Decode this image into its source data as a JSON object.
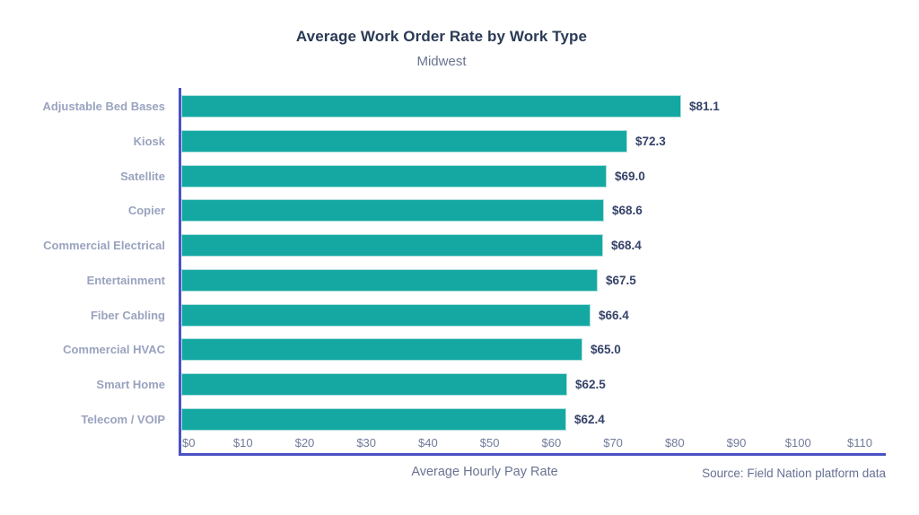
{
  "header": {
    "title": "Average Work Order Rate by Work Type",
    "subtitle": "Midwest"
  },
  "footer": {
    "x_axis_label": "Average Hourly Pay Rate",
    "source": "Source: Field Nation platform data"
  },
  "colors": {
    "bar": "#15a8a3",
    "bar_border": "#aee0dd",
    "axis_line": "#4c52c4",
    "title_text": "#2b3a55",
    "subtitle_text": "#6b7392",
    "category_label_text": "#9aa3bf",
    "value_label_text": "#36436a",
    "tick_label_text": "#717a9a",
    "footer_text": "#667093",
    "background": "#ffffff"
  },
  "chart_data": {
    "type": "bar",
    "orientation": "horizontal",
    "title": "Average Work Order Rate by Work Type",
    "subtitle": "Midwest",
    "xlabel": "Average Hourly Pay Rate",
    "ylabel": "",
    "xlim": [
      0,
      110
    ],
    "grid": false,
    "legend": "none",
    "categories": [
      "Adjustable Bed Bases",
      "Kiosk",
      "Satellite",
      "Copier",
      "Commercial Electrical",
      "Entertainment",
      "Fiber Cabling",
      "Commercial HVAC",
      "Smart Home",
      "Telecom / VOIP"
    ],
    "values": [
      81.1,
      72.3,
      69.0,
      68.6,
      68.4,
      67.5,
      66.4,
      65.0,
      62.5,
      62.4
    ],
    "value_labels": [
      "$81.1",
      "$72.3",
      "$69.0",
      "$68.6",
      "$68.4",
      "$67.5",
      "$66.4",
      "$65.0",
      "$62.5",
      "$62.4"
    ],
    "x_ticks": [
      0,
      10,
      20,
      30,
      40,
      50,
      60,
      70,
      80,
      90,
      100,
      110
    ],
    "x_tick_labels": [
      "$0",
      "$10",
      "$20",
      "$30",
      "$40",
      "$50",
      "$60",
      "$70",
      "$80",
      "$90",
      "$100",
      "$110"
    ],
    "source": "Source: Field Nation platform data"
  }
}
